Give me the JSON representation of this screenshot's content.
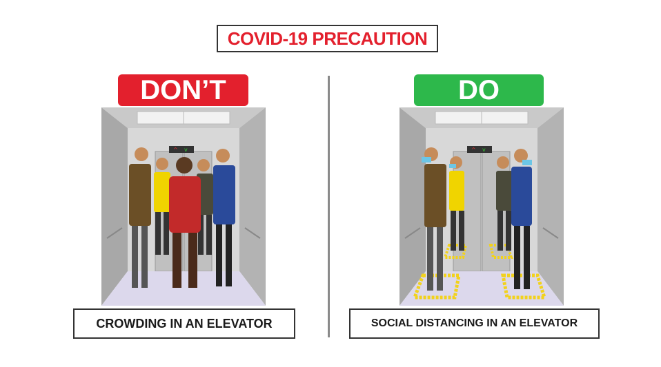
{
  "title": "COVID-19 PRECAUTION",
  "left_panel": {
    "badge": "DON’T",
    "caption": "CROWDING IN AN ELEVATOR"
  },
  "right_panel": {
    "badge": "DO",
    "caption": "SOCIAL DISTANCING IN AN ELEVATOR"
  },
  "colors": {
    "title_red": "#e3202d",
    "dont_red": "#e3202d",
    "do_green": "#2db84b",
    "floor_marker_yellow": "#f2d21b",
    "divider_gray": "#8a8a8a"
  }
}
